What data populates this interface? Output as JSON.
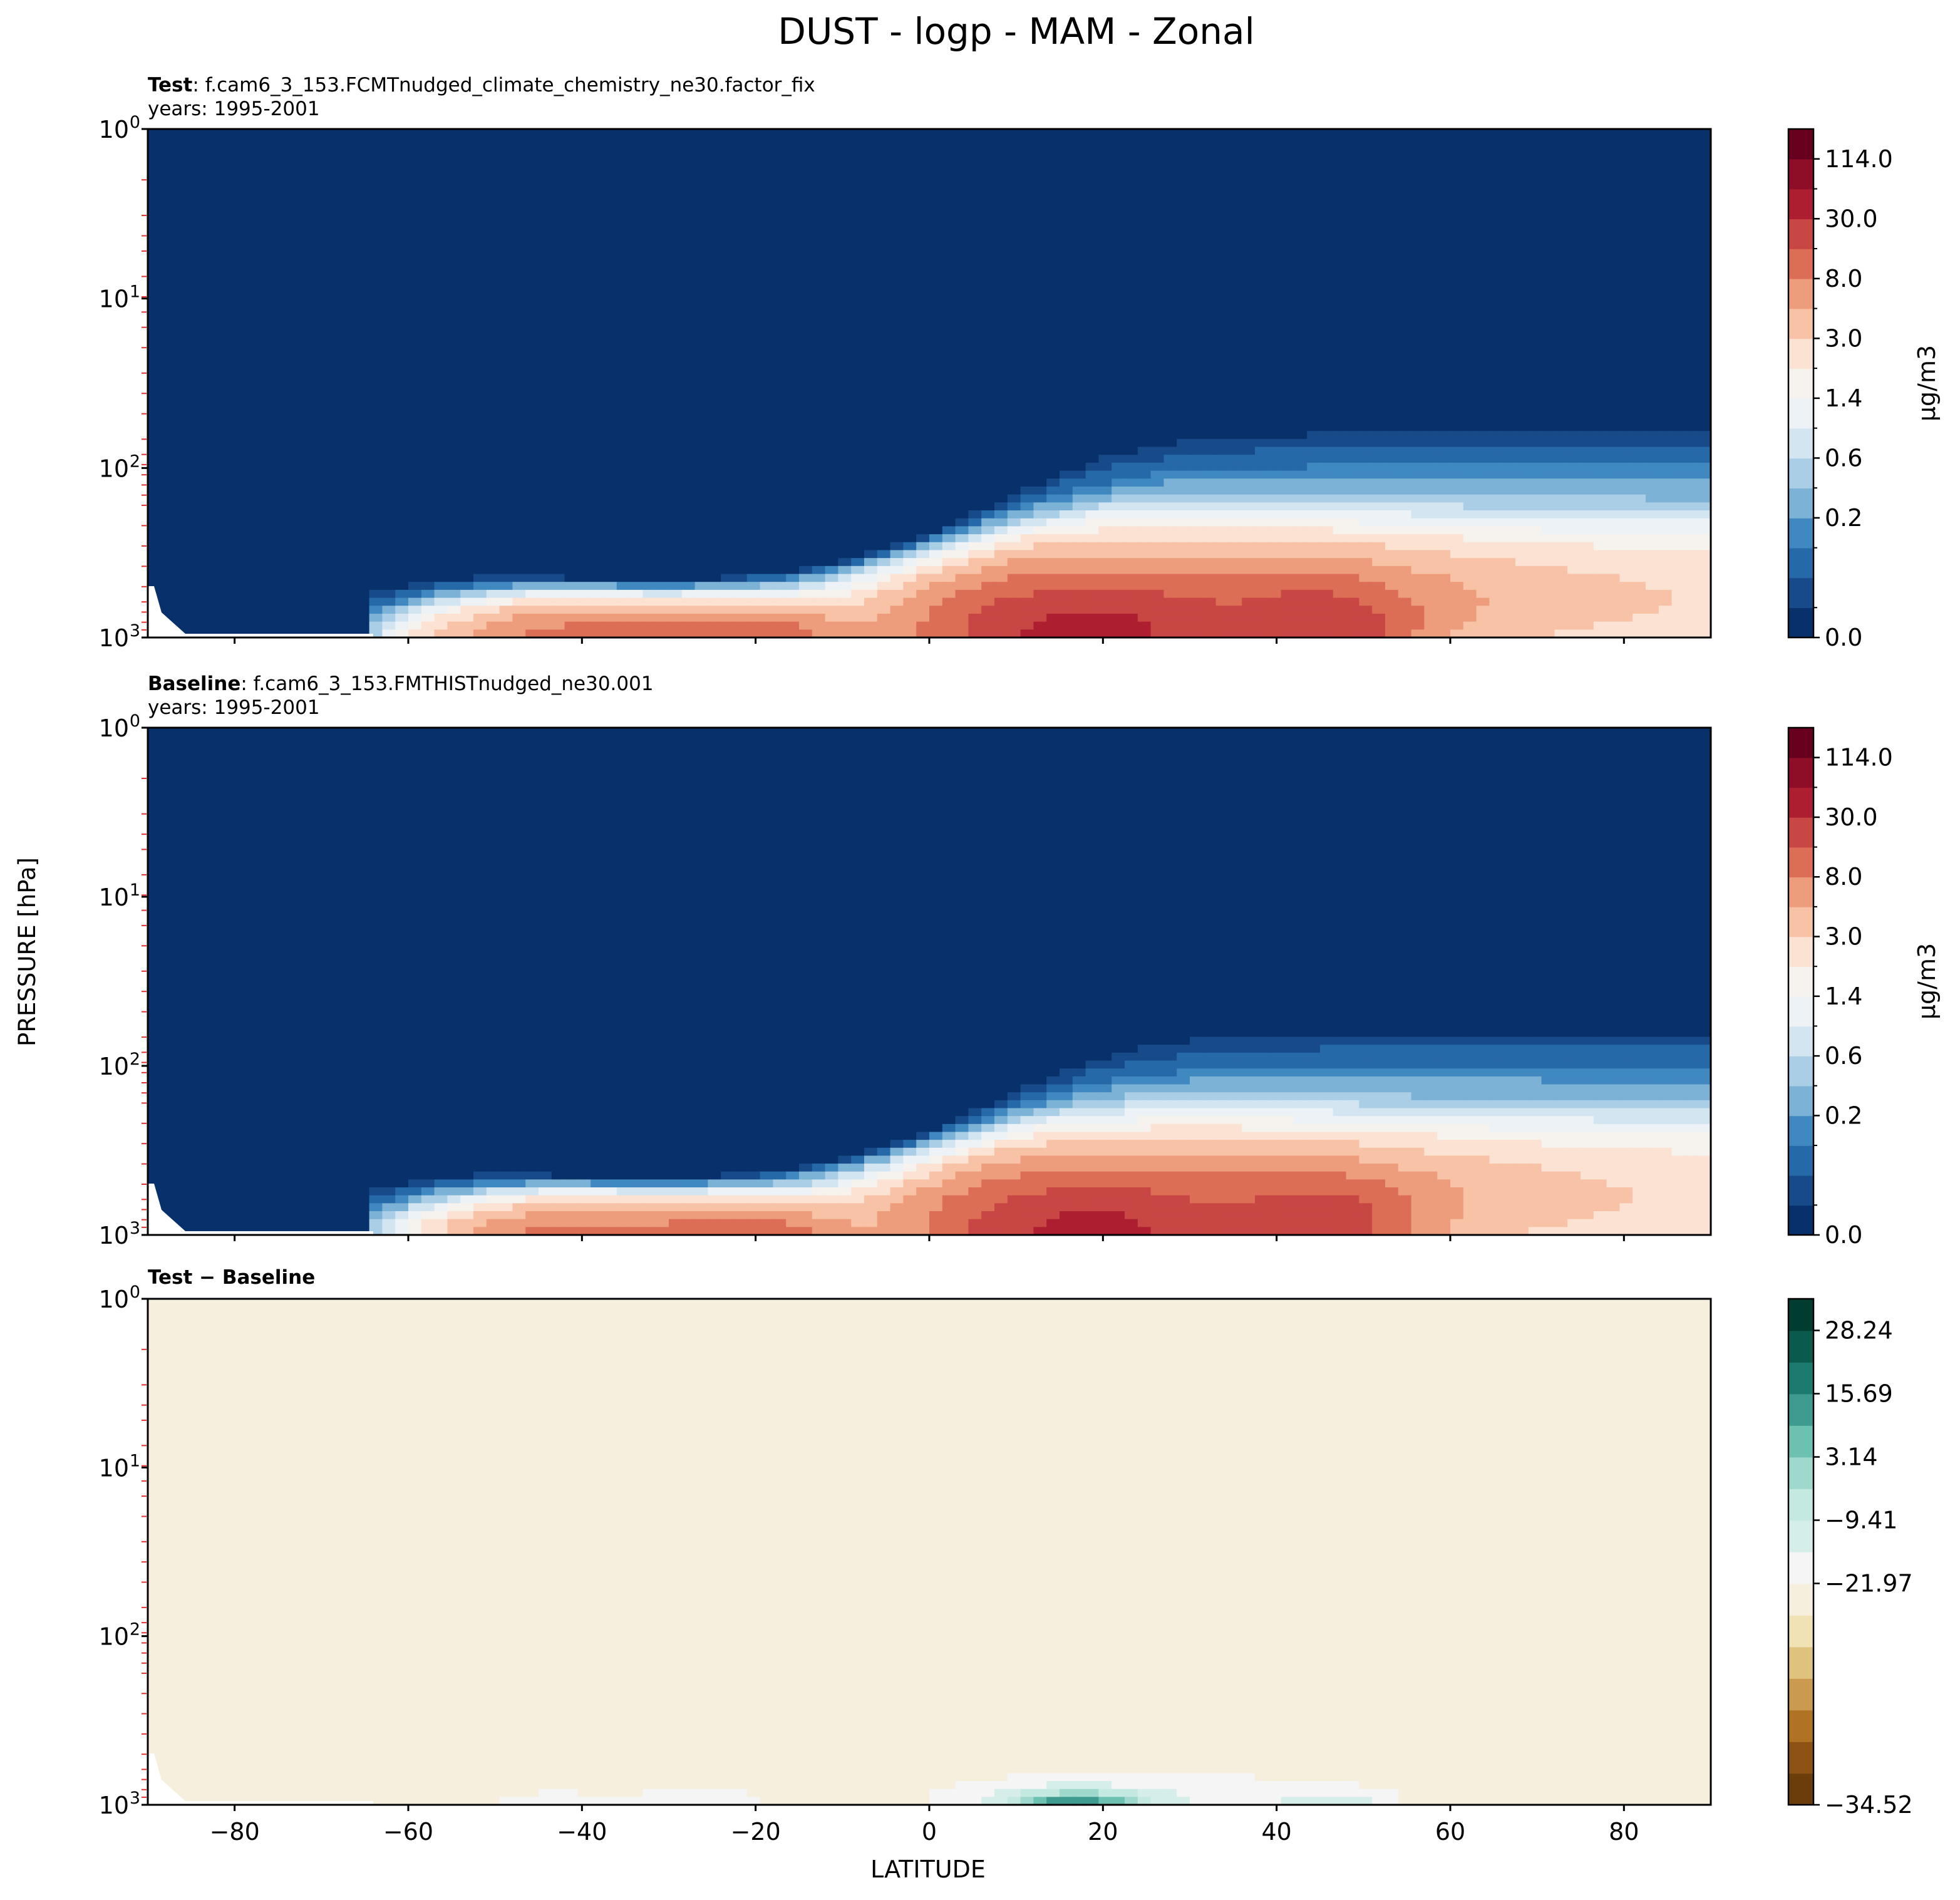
{
  "figure": {
    "title": "DUST - logp - MAM - Zonal",
    "ylabel": "PRESSURE [hPa]",
    "xlabel": "LATITUDE"
  },
  "colors": {
    "rdbu": [
      "#08306b",
      "#174a88",
      "#2669a8",
      "#3f88c0",
      "#7bb2d6",
      "#aacee5",
      "#d2e5f0",
      "#ecf2f6",
      "#f6f2ee",
      "#fbe2d3",
      "#f7c2a6",
      "#ee9d7c",
      "#dd6e56",
      "#c84643",
      "#ad1f30",
      "#8f0e27",
      "#67001f"
    ],
    "brbg": [
      "#6b3d0b",
      "#8e5314",
      "#b07324",
      "#c99a4f",
      "#dfc27d",
      "#f1e2b6",
      "#f6efde",
      "#f4f5f4",
      "#d6eee9",
      "#c4e9e1",
      "#9fd8cd",
      "#6cc1b1",
      "#3f9b8f",
      "#1d7a6e",
      "#0a5a4d",
      "#003c30"
    ]
  },
  "chart_data": [
    {
      "type": "heatmap",
      "label_bold": "Test",
      "label_rest": ": f.cam6_3_153.FCMTnudged_climate_chemistry_ne30.factor_fix",
      "years": "years: 1995-2001",
      "xlim": [
        -90,
        90
      ],
      "ylim": [
        1000,
        1
      ],
      "yscale": "log",
      "yticks": [
        {
          "base": "10",
          "exp": "0"
        },
        {
          "base": "10",
          "exp": "1"
        },
        {
          "base": "10",
          "exp": "2"
        },
        {
          "base": "10",
          "exp": "3"
        }
      ],
      "colorbar": {
        "label": "μg/m3",
        "ticks": [
          "114.0",
          "30.0",
          "8.0",
          "3.0",
          "1.4",
          "0.6",
          "0.2",
          "0.0"
        ]
      },
      "field_scale": 1.0
    },
    {
      "type": "heatmap",
      "label_bold": "Baseline",
      "label_rest": ": f.cam6_3_153.FMTHISTnudged_ne30.001",
      "years": "years: 1995-2001",
      "xlim": [
        -90,
        90
      ],
      "ylim": [
        1000,
        1
      ],
      "yscale": "log",
      "yticks": [
        {
          "base": "10",
          "exp": "0"
        },
        {
          "base": "10",
          "exp": "1"
        },
        {
          "base": "10",
          "exp": "2"
        },
        {
          "base": "10",
          "exp": "3"
        }
      ],
      "colorbar": {
        "label": "μg/m3",
        "ticks": [
          "114.0",
          "30.0",
          "8.0",
          "3.0",
          "1.4",
          "0.6",
          "0.2",
          "0.0"
        ]
      },
      "field_scale": 0.92
    },
    {
      "type": "heatmap",
      "label_bold": "Test − Baseline",
      "xlim": [
        -90,
        90
      ],
      "ylim": [
        1000,
        1
      ],
      "yscale": "log",
      "xticks": [
        "−80",
        "−60",
        "−40",
        "−20",
        "0",
        "20",
        "40",
        "60",
        "80"
      ],
      "yticks": [
        {
          "base": "10",
          "exp": "0"
        },
        {
          "base": "10",
          "exp": "1"
        },
        {
          "base": "10",
          "exp": "2"
        },
        {
          "base": "10",
          "exp": "3"
        }
      ],
      "colorbar": {
        "ticks": [
          "28.24",
          "15.69",
          "3.14",
          "−9.41",
          "−21.97",
          "−34.52"
        ]
      }
    }
  ]
}
